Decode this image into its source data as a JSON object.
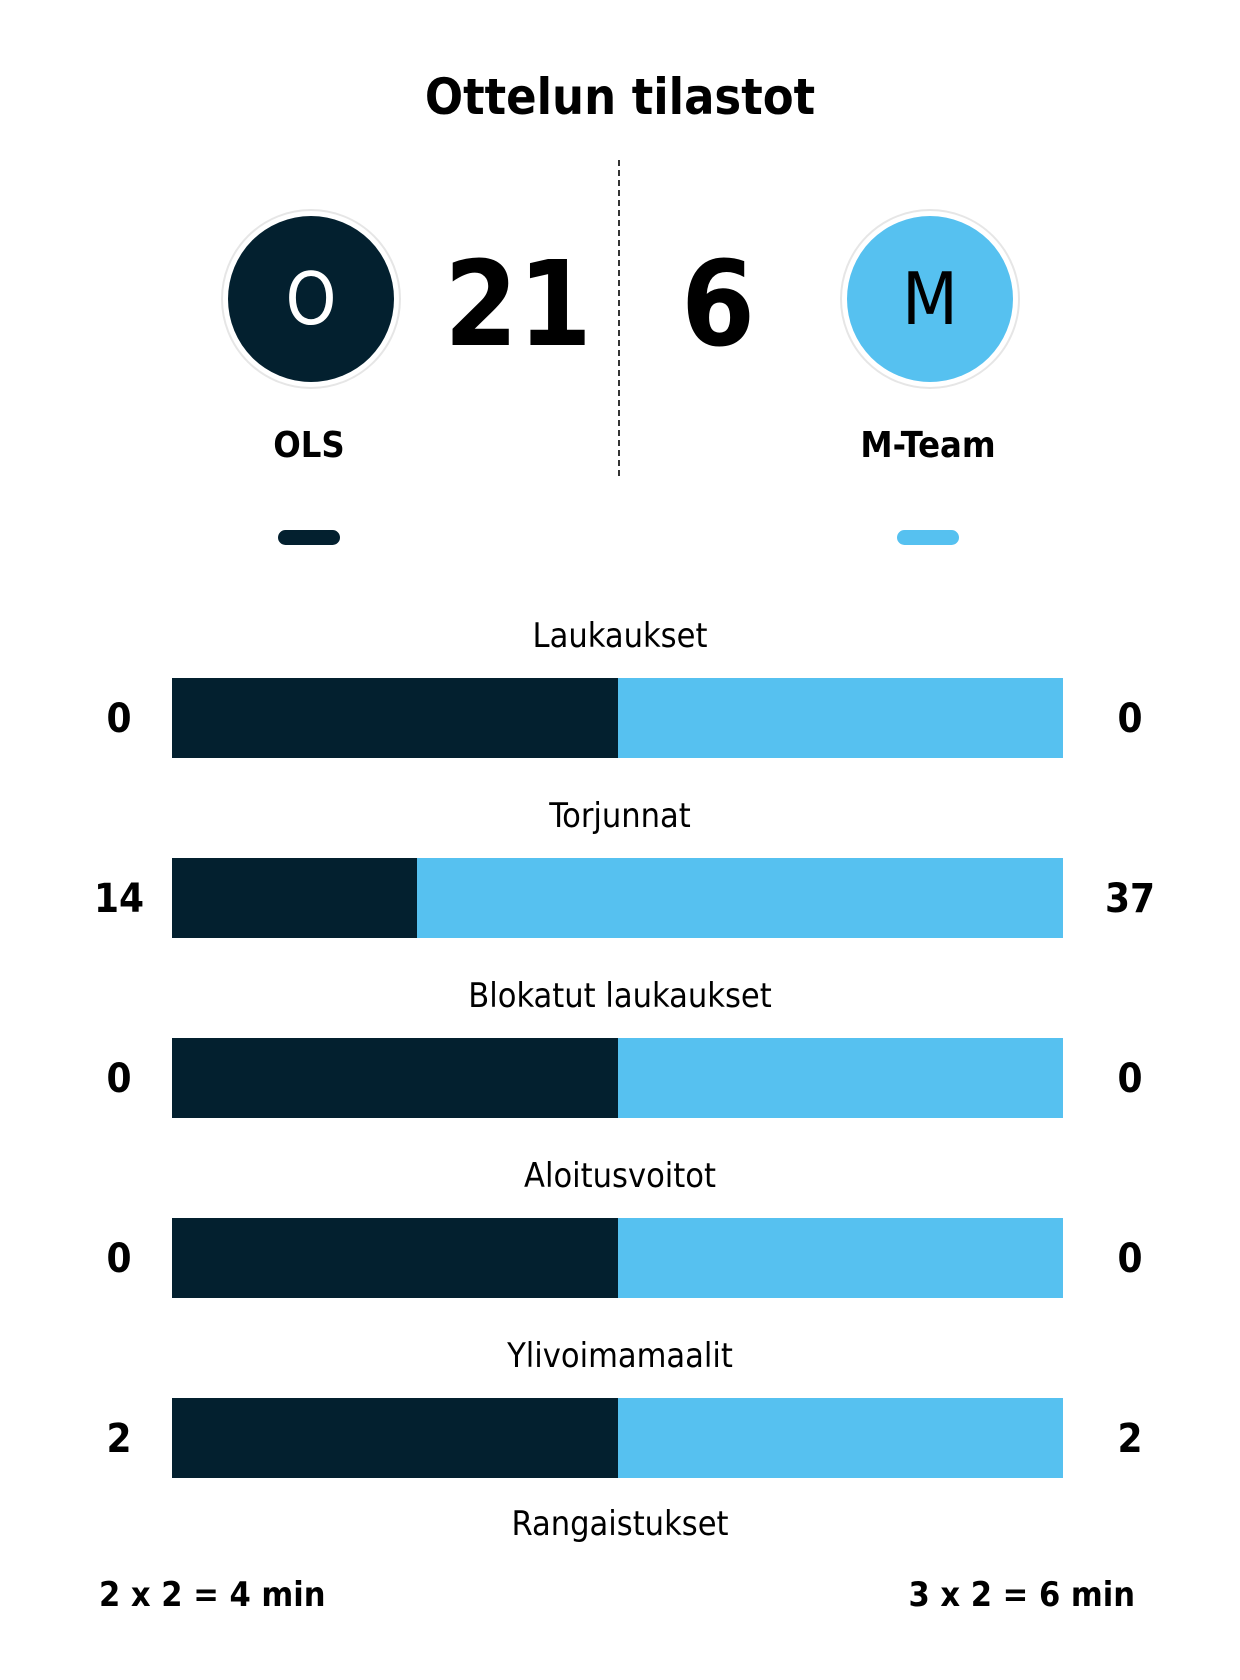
{
  "title": "Ottelun tilastot",
  "colors": {
    "home": "#03202f",
    "away": "#56c1f0"
  },
  "home": {
    "initial": "O",
    "name": "OLS",
    "score": "21"
  },
  "away": {
    "initial": "M",
    "name": "M-Team",
    "score": "6"
  },
  "stats": [
    {
      "label": "Laukaukset",
      "home": "0",
      "away": "0",
      "home_share": 50
    },
    {
      "label": "Torjunnat",
      "home": "14",
      "away": "37",
      "home_share": 27.5
    },
    {
      "label": "Blokatut laukaukset",
      "home": "0",
      "away": "0",
      "home_share": 50
    },
    {
      "label": "Aloitusvoitot",
      "home": "0",
      "away": "0",
      "home_share": 50
    },
    {
      "label": "Ylivoimamaalit",
      "home": "2",
      "away": "2",
      "home_share": 50
    }
  ],
  "penalties": {
    "label": "Rangaistukset",
    "home": "2 x 2 = 4 min",
    "away": "3 x 2 = 6 min"
  }
}
